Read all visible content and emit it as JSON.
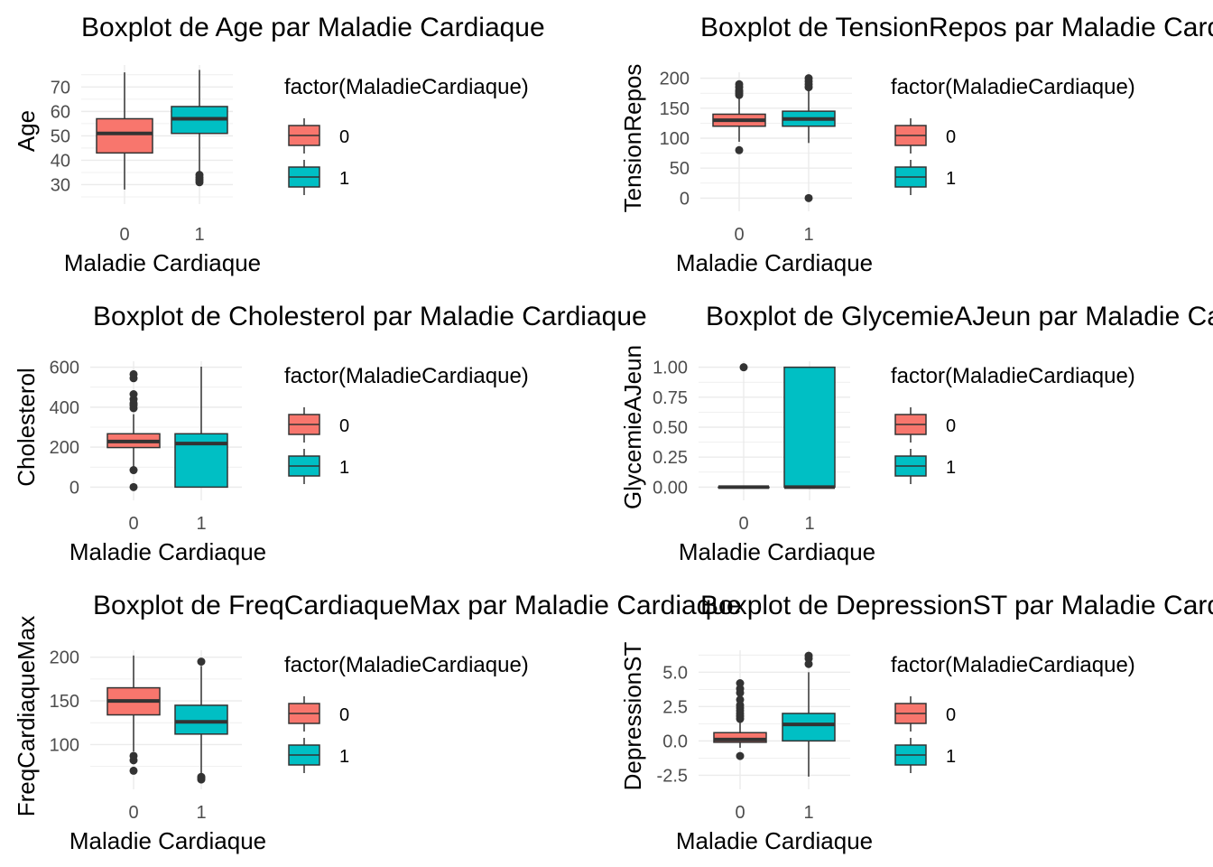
{
  "chart_data": [
    {
      "type": "box",
      "title": "Boxplot de Age par Maladie Cardiaque",
      "xlabel": "Maladie Cardiaque",
      "ylabel": "Age",
      "categories": [
        "0",
        "1"
      ],
      "ylim": [
        25,
        79
      ],
      "yticks": [
        30,
        40,
        50,
        60,
        70
      ],
      "ytick_labels": [
        "30",
        "40",
        "50",
        "60",
        "70"
      ],
      "boxes": [
        {
          "q1": 43,
          "median": 51,
          "q3": 57,
          "whisker_low": 28,
          "whisker_high": 76,
          "outliers": []
        },
        {
          "q1": 51,
          "median": 57,
          "q3": 62,
          "whisker_low": 35,
          "whisker_high": 77,
          "outliers": [
            31,
            32,
            33,
            34
          ]
        }
      ],
      "legend": {
        "title": "factor(MaladieCardiaque)",
        "entries": [
          "0",
          "1"
        ]
      }
    },
    {
      "type": "box",
      "title": "Boxplot de TensionRepos par Maladie Cardiaque",
      "xlabel": "Maladie Cardiaque",
      "ylabel": "TensionRepos",
      "categories": [
        "0",
        "1"
      ],
      "ylim": [
        -10,
        210
      ],
      "yticks": [
        0,
        50,
        100,
        150,
        200
      ],
      "ytick_labels": [
        "0",
        "50",
        "100",
        "150",
        "200"
      ],
      "boxes": [
        {
          "q1": 120,
          "median": 130,
          "q3": 140,
          "whisker_low": 94,
          "whisker_high": 170,
          "outliers": [
            80,
            172,
            175,
            178,
            180,
            185,
            190
          ]
        },
        {
          "q1": 120,
          "median": 132,
          "q3": 145,
          "whisker_low": 92,
          "whisker_high": 180,
          "outliers": [
            0,
            185,
            190,
            195,
            200
          ]
        }
      ],
      "legend": {
        "title": "factor(MaladieCardiaque)",
        "entries": [
          "0",
          "1"
        ]
      }
    },
    {
      "type": "box",
      "title": "Boxplot de Cholesterol par Maladie Cardiaque",
      "xlabel": "Maladie Cardiaque",
      "ylabel": "Cholesterol",
      "categories": [
        "0",
        "1"
      ],
      "ylim": [
        -30,
        630
      ],
      "yticks": [
        0,
        200,
        400,
        600
      ],
      "ytick_labels": [
        "0",
        "200",
        "400",
        "600"
      ],
      "boxes": [
        {
          "q1": 198,
          "median": 228,
          "q3": 267,
          "whisker_low": 100,
          "whisker_high": 365,
          "outliers": [
            0,
            85,
            395,
            410,
            420,
            440,
            465,
            545,
            565
          ]
        },
        {
          "q1": 0,
          "median": 218,
          "q3": 267,
          "whisker_low": 0,
          "whisker_high": 603,
          "outliers": []
        }
      ],
      "legend": {
        "title": "factor(MaladieCardiaque)",
        "entries": [
          "0",
          "1"
        ]
      }
    },
    {
      "type": "box",
      "title": "Boxplot de GlycemieAJeun par Maladie Cardiaque",
      "xlabel": "Maladie Cardiaque",
      "ylabel": "GlycemieAJeun",
      "categories": [
        "0",
        "1"
      ],
      "ylim": [
        -0.05,
        1.05
      ],
      "yticks": [
        0,
        0.25,
        0.5,
        0.75,
        1.0
      ],
      "ytick_labels": [
        "0.00",
        "0.25",
        "0.50",
        "0.75",
        "1.00"
      ],
      "boxes": [
        {
          "q1": 0,
          "median": 0,
          "q3": 0,
          "whisker_low": 0,
          "whisker_high": 0,
          "outliers": [
            1
          ]
        },
        {
          "q1": 0,
          "median": 0,
          "q3": 1,
          "whisker_low": 0,
          "whisker_high": 1,
          "outliers": []
        }
      ],
      "legend": {
        "title": "factor(MaladieCardiaque)",
        "entries": [
          "0",
          "1"
        ]
      }
    },
    {
      "type": "box",
      "title": "Boxplot de FreqCardiaqueMax par Maladie Cardiaque",
      "xlabel": "Maladie Cardiaque",
      "ylabel": "FreqCardiaqueMax",
      "categories": [
        "0",
        "1"
      ],
      "ylim": [
        57,
        208
      ],
      "yticks": [
        100,
        150,
        200
      ],
      "ytick_labels": [
        "100",
        "150",
        "200"
      ],
      "boxes": [
        {
          "q1": 134,
          "median": 150,
          "q3": 165,
          "whisker_low": 92,
          "whisker_high": 202,
          "outliers": [
            70,
            82,
            87
          ]
        },
        {
          "q1": 112,
          "median": 126,
          "q3": 145,
          "whisker_low": 67,
          "whisker_high": 190,
          "outliers": [
            60,
            62,
            63,
            195
          ]
        }
      ],
      "legend": {
        "title": "factor(MaladieCardiaque)",
        "entries": [
          "0",
          "1"
        ]
      }
    },
    {
      "type": "box",
      "title": "Boxplot de DepressionST par Maladie Cardiaque",
      "xlabel": "Maladie Cardiaque",
      "ylabel": "DepressionST",
      "categories": [
        "0",
        "1"
      ],
      "ylim": [
        -3,
        6.6
      ],
      "yticks": [
        -2.5,
        0,
        2.5,
        5.0
      ],
      "ytick_labels": [
        "-2.5",
        "0.0",
        "2.5",
        "5.0"
      ],
      "boxes": [
        {
          "q1": -0.1,
          "median": 0.1,
          "q3": 0.6,
          "whisker_low": -0.5,
          "whisker_high": 1.4,
          "outliers": [
            -1.1,
            1.6,
            1.8,
            2.0,
            2.2,
            2.4,
            2.6,
            3.0,
            3.5,
            3.8,
            4.2
          ]
        },
        {
          "q1": 0.0,
          "median": 1.2,
          "q3": 2.0,
          "whisker_low": -2.6,
          "whisker_high": 5.0,
          "outliers": [
            5.6,
            6.0,
            6.2
          ]
        }
      ],
      "legend": {
        "title": "factor(MaladieCardiaque)",
        "entries": [
          "0",
          "1"
        ]
      }
    }
  ],
  "colors": {
    "group_0": "#F8766D",
    "group_1": "#00BFC4",
    "box_outline": "#333333",
    "grid": "#ebebeb",
    "tick_text": "#4d4d4d"
  }
}
